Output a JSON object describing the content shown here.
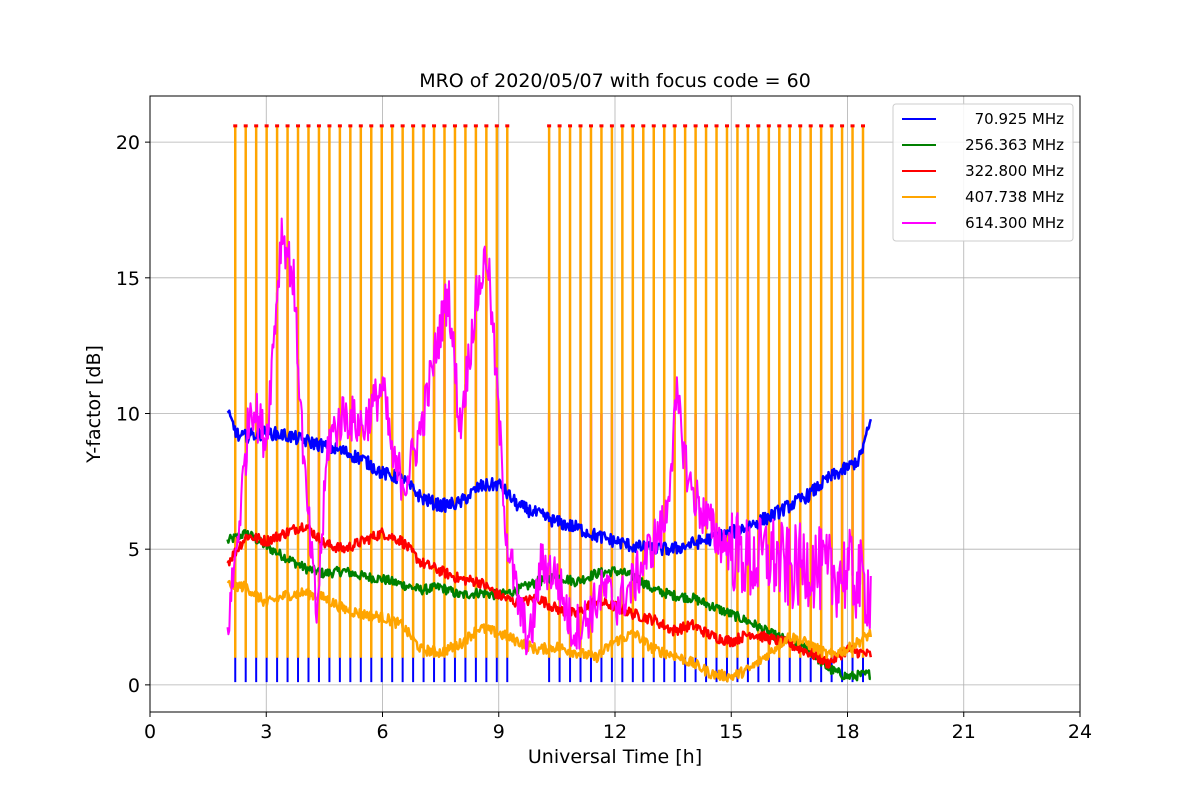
{
  "chart_data": {
    "type": "line",
    "title": "MRO of 2020/05/07 with focus code = 60",
    "xlabel": "Universal Time [h]",
    "ylabel": "Y-factor [dB]",
    "xlim": [
      0,
      24
    ],
    "ylim": [
      -1,
      21.7
    ],
    "xticks": [
      0,
      3,
      6,
      9,
      12,
      15,
      18,
      21,
      24
    ],
    "yticks": [
      0,
      5,
      10,
      15,
      20
    ],
    "grid": true,
    "legend_position": "top-right",
    "calibration_spikes": {
      "x_start": 2.2,
      "x_end": 18.5,
      "period_h": 0.27,
      "gap": [
        9.3,
        10.2
      ],
      "peak": 20.6,
      "plateau": 10.0,
      "trough_70MHz": 0.1
    },
    "series": [
      {
        "name": "70.925 MHz",
        "color": "#0000ff",
        "x": [
          2.0,
          2.3,
          2.6,
          3.0,
          3.5,
          4.0,
          4.5,
          5.0,
          5.5,
          6.0,
          6.5,
          7.0,
          7.5,
          8.0,
          8.5,
          9.0,
          9.5,
          10.0,
          10.5,
          11.0,
          11.5,
          12.0,
          12.5,
          13.0,
          13.5,
          14.0,
          14.5,
          15.0,
          15.5,
          16.0,
          16.5,
          17.0,
          17.5,
          18.0,
          18.3,
          18.6
        ],
        "y": [
          10.0,
          9.1,
          9.2,
          9.3,
          9.2,
          9.0,
          8.8,
          8.6,
          8.3,
          7.8,
          7.6,
          6.9,
          6.6,
          6.7,
          7.3,
          7.4,
          6.6,
          6.3,
          6.0,
          5.8,
          5.5,
          5.3,
          5.1,
          5.0,
          5.0,
          5.2,
          5.4,
          5.6,
          5.9,
          6.2,
          6.6,
          7.0,
          7.6,
          8.0,
          8.3,
          9.7
        ]
      },
      {
        "name": "256.363 MHz",
        "color": "#008000",
        "x": [
          2.0,
          2.5,
          3.0,
          3.5,
          4.0,
          4.5,
          5.0,
          5.5,
          6.0,
          6.5,
          7.0,
          7.5,
          8.0,
          8.5,
          9.0,
          9.5,
          10.0,
          10.5,
          11.0,
          11.5,
          12.0,
          12.5,
          13.0,
          13.5,
          14.0,
          14.5,
          15.0,
          15.5,
          16.0,
          16.5,
          17.0,
          17.5,
          18.0,
          18.6
        ],
        "y": [
          5.3,
          5.6,
          5.1,
          4.7,
          4.3,
          4.1,
          4.2,
          4.0,
          3.9,
          3.7,
          3.5,
          3.6,
          3.3,
          3.4,
          3.3,
          3.5,
          3.8,
          4.0,
          3.8,
          4.1,
          4.2,
          4.0,
          3.5,
          3.3,
          3.2,
          2.9,
          2.6,
          2.3,
          1.9,
          1.6,
          1.3,
          0.6,
          0.3,
          0.4
        ]
      },
      {
        "name": "322.800 MHz",
        "color": "#ff0000",
        "x": [
          2.0,
          2.5,
          3.0,
          3.5,
          4.0,
          4.5,
          5.0,
          5.5,
          6.0,
          6.5,
          7.0,
          7.5,
          8.0,
          8.5,
          9.0,
          9.5,
          10.0,
          10.5,
          11.0,
          11.5,
          12.0,
          12.5,
          13.0,
          13.5,
          14.0,
          14.5,
          15.0,
          15.5,
          16.0,
          16.5,
          17.0,
          17.5,
          18.0,
          18.6
        ],
        "y": [
          4.5,
          5.5,
          5.3,
          5.6,
          5.9,
          5.2,
          5.0,
          5.3,
          5.6,
          5.3,
          4.5,
          4.2,
          3.9,
          3.8,
          3.3,
          3.0,
          3.2,
          2.8,
          2.6,
          3.1,
          2.9,
          2.6,
          2.4,
          2.0,
          2.2,
          1.8,
          1.6,
          1.9,
          1.7,
          1.5,
          1.2,
          0.8,
          1.3,
          1.1
        ]
      },
      {
        "name": "407.738 MHz",
        "color": "#ffa500",
        "x": [
          2.0,
          2.5,
          3.0,
          3.5,
          4.0,
          4.5,
          5.0,
          5.5,
          6.0,
          6.5,
          7.0,
          7.5,
          8.0,
          8.5,
          9.0,
          9.5,
          10.0,
          10.5,
          11.0,
          11.5,
          12.0,
          12.5,
          13.0,
          13.5,
          14.0,
          14.5,
          15.0,
          15.5,
          16.0,
          16.5,
          17.0,
          17.5,
          18.0,
          18.6
        ],
        "y": [
          3.7,
          3.6,
          3.0,
          3.3,
          3.4,
          3.2,
          2.8,
          2.6,
          2.5,
          2.2,
          1.3,
          1.2,
          1.5,
          2.1,
          1.9,
          1.6,
          1.3,
          1.4,
          1.2,
          1.0,
          1.6,
          1.9,
          1.3,
          1.1,
          0.8,
          0.4,
          0.3,
          0.6,
          1.2,
          1.8,
          1.5,
          1.1,
          1.3,
          1.9
        ]
      },
      {
        "name": "614.300 MHz",
        "color": "#ff00ff",
        "x": [
          2.0,
          2.3,
          2.6,
          3.0,
          3.4,
          3.7,
          4.0,
          4.3,
          4.6,
          5.0,
          5.5,
          6.0,
          6.3,
          6.6,
          7.0,
          7.4,
          7.7,
          8.0,
          8.4,
          8.7,
          8.9,
          9.2,
          9.5,
          9.8,
          10.1,
          10.5,
          10.9,
          11.3,
          11.7,
          12.1,
          12.5,
          12.9,
          13.3,
          13.6,
          13.9,
          14.2,
          14.6,
          15.0,
          15.5,
          16.0,
          16.5,
          17.0,
          17.5,
          18.0,
          18.3,
          18.6
        ],
        "y": [
          2.0,
          6.0,
          10.5,
          9.0,
          16.8,
          15.0,
          7.5,
          2.5,
          9.0,
          10.0,
          9.5,
          11.0,
          8.0,
          7.5,
          9.5,
          12.5,
          14.5,
          9.5,
          14.0,
          16.0,
          12.0,
          5.5,
          3.0,
          1.5,
          4.5,
          4.0,
          2.0,
          2.5,
          3.5,
          3.0,
          3.8,
          5.0,
          6.0,
          10.5,
          7.5,
          6.5,
          5.5,
          5.0,
          4.5,
          4.8,
          4.2,
          4.5,
          4.0,
          4.2,
          3.8,
          3.5
        ]
      }
    ]
  }
}
